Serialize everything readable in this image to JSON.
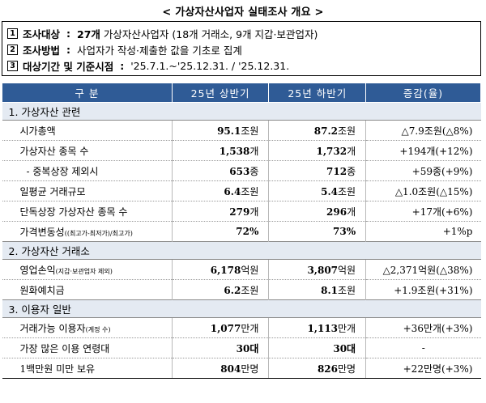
{
  "title": "< 가상자산사업자 실태조사 개요 >",
  "summary": [
    {
      "num": "1",
      "label": "조사대상",
      "sep": ":",
      "value_bold": "27개",
      "value": " 가상자산사업자 (18개 거래소, 9개 지갑·보관업자)"
    },
    {
      "num": "2",
      "label": "조사방법",
      "sep": ":",
      "value_bold": "",
      "value": "사업자가 작성·제출한 값을 기초로 집계"
    },
    {
      "num": "3",
      "label": "대상기간 및 기준시점",
      "sep": ":",
      "value_bold": "",
      "value": "'25.7.1.~'25.12.31. / '25.12.31."
    }
  ],
  "table": {
    "headers": [
      "구 분",
      "25년 상반기",
      "25년 하반기",
      "증감(율)"
    ],
    "sections": [
      {
        "title": "1. 가상자산 관련",
        "rows": [
          {
            "item": "시가총액",
            "note": "",
            "h1": "95.1",
            "h1_unit": "조원",
            "h2": "87.2",
            "h2_unit": "조원",
            "chg": "△7.9조원(△8%)"
          },
          {
            "item": "가상자산 종목 수",
            "note": "",
            "h1": "1,538",
            "h1_unit": "개",
            "h2": "1,732",
            "h2_unit": "개",
            "chg": "+194개(+12%)"
          },
          {
            "item": "- 중복상장 제외시",
            "note": "",
            "h1": "653",
            "h1_unit": "종",
            "h2": "712",
            "h2_unit": "종",
            "chg": "+59종(+9%)"
          },
          {
            "item": "일평균 거래규모",
            "note": "",
            "h1": "6.4",
            "h1_unit": "조원",
            "h2": "5.4",
            "h2_unit": "조원",
            "chg": "△1.0조원(△15%)"
          },
          {
            "item": "단독상장 가상자산 종목 수",
            "note": "",
            "h1": "279",
            "h1_unit": "개",
            "h2": "296",
            "h2_unit": "개",
            "chg": "+17개(+6%)"
          },
          {
            "item": "가격변동성",
            "note": "((최고가-최저가)/최고가)",
            "h1": "72%",
            "h1_unit": "",
            "h2": "73%",
            "h2_unit": "",
            "chg": "+1%p"
          }
        ]
      },
      {
        "title": "2. 가상자산 거래소",
        "rows": [
          {
            "item": "영업손익",
            "note": "(지갑·보관업자 제외)",
            "h1": "6,178",
            "h1_unit": "억원",
            "h2": "3,807",
            "h2_unit": "억원",
            "chg": "△2,371억원(△38%)"
          },
          {
            "item": "원화예치금",
            "note": "",
            "h1": "6.2",
            "h1_unit": "조원",
            "h2": "8.1",
            "h2_unit": "조원",
            "chg": "+1.9조원(+31%)"
          }
        ]
      },
      {
        "title": "3. 이용자 일반",
        "rows": [
          {
            "item": "거래가능 이용자",
            "note": "(계정 수)",
            "h1": "1,077",
            "h1_unit": "만개",
            "h2": "1,113",
            "h2_unit": "만개",
            "chg": "+36만개(+3%)"
          },
          {
            "item": "가장 많은 이용 연령대",
            "note": "",
            "h1": "30대",
            "h1_unit": "",
            "h2": "30대",
            "h2_unit": "",
            "chg": "-"
          },
          {
            "item": "1백만원 미만 보유",
            "note": "",
            "h1": "804",
            "h1_unit": "만명",
            "h2": "826",
            "h2_unit": "만명",
            "chg": "+22만명(+3%)"
          }
        ]
      }
    ]
  }
}
